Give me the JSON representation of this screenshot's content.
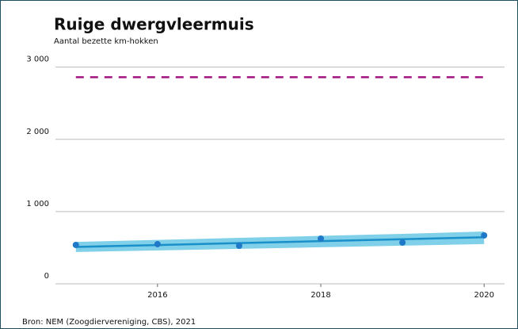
{
  "chart_data": {
    "type": "line",
    "title": "Ruige dwergvleermuis",
    "subtitle": "Aantal bezette km-hokken",
    "source": "Bron: NEM (Zoogdiervereniging, CBS), 2021",
    "x": [
      2015,
      2016,
      2017,
      2018,
      2019,
      2020
    ],
    "series": [
      {
        "color": "#1f78c8",
        "values": [
          538,
          549,
          527,
          626,
          571,
          670
        ]
      }
    ],
    "trend": {
      "color": "#1a8fc9",
      "band_color": "#7fd0e8",
      "values": [
        510,
        537,
        564,
        591,
        618,
        645
      ],
      "lower": [
        440,
        462,
        484,
        506,
        528,
        550
      ],
      "upper": [
        580,
        608,
        636,
        664,
        692,
        725
      ]
    },
    "reference": {
      "color": "#a0157f",
      "value": 2860
    },
    "xlim": [
      2014.75,
      2020.25
    ],
    "xticks": [
      2016,
      2018,
      2020
    ],
    "ylim": [
      0,
      3150
    ],
    "yticks": [
      0,
      {
        "value": 1000,
        "label": "1 000"
      },
      {
        "value": 2000,
        "label": "2 000"
      },
      {
        "value": 3000,
        "label": "3 000"
      }
    ],
    "grid": true
  }
}
